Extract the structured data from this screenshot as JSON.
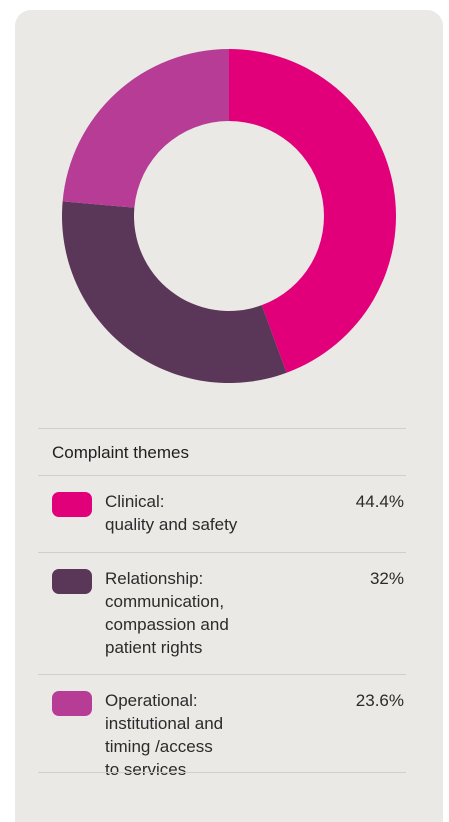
{
  "chart_data": {
    "type": "pie",
    "variant": "donut",
    "legend_title": "Complaint themes",
    "slices": [
      {
        "label": "Clinical:\nquality and safety",
        "value": 44.4,
        "value_text": "44.4%",
        "color": "#e2007a"
      },
      {
        "label": "Relationship:\ncommunication,\ncompassion and\npatient rights",
        "value": 32,
        "value_text": "32%",
        "color": "#5a3658"
      },
      {
        "label": "Operational:\ninstitutional and\ntiming /access\nto services",
        "value": 23.6,
        "value_text": "23.6%",
        "color": "#b73c96"
      }
    ]
  },
  "colors": {
    "card_background": "#ebe9e5",
    "divider": "#d2cec8"
  }
}
